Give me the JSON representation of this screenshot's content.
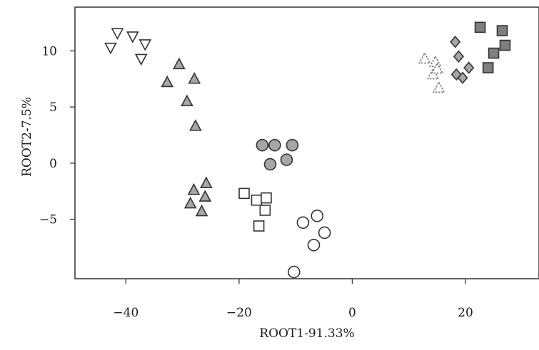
{
  "chart_data": {
    "type": "scatter",
    "title": "",
    "xlabel": "ROOT1-91.33%",
    "ylabel": "ROOT2-7.5%",
    "xlim": [
      -49,
      33
    ],
    "ylim": [
      -10.3,
      13.9
    ],
    "xticks": [
      -40,
      -20,
      0,
      20
    ],
    "yticks": [
      10,
      5,
      0,
      -5
    ],
    "xtick_labels": [
      "−40",
      "−20",
      "0",
      "20"
    ],
    "ytick_labels": [
      "10",
      "5",
      "0",
      "−5"
    ],
    "grid": false,
    "legend": "none",
    "series": [
      {
        "marker": "triangle-down",
        "fill": "#ffffff",
        "stroke": "#333333",
        "points": [
          [
            -42.7,
            10.3
          ],
          [
            -41.5,
            11.6
          ],
          [
            -38.8,
            11.3
          ],
          [
            -37.3,
            9.3
          ],
          [
            -36.6,
            10.6
          ]
        ]
      },
      {
        "marker": "triangle-up",
        "fill": "#a6a6a6",
        "stroke": "#333333",
        "points": [
          [
            -32.7,
            7.2
          ],
          [
            -30.6,
            8.8
          ],
          [
            -29.2,
            5.5
          ],
          [
            -27.9,
            7.5
          ],
          [
            -27.7,
            3.3
          ]
        ]
      },
      {
        "marker": "triangle-up",
        "fill": "#a6a6a6",
        "stroke": "#333333",
        "points": [
          [
            -28.6,
            -3.6
          ],
          [
            -28.0,
            -2.4
          ],
          [
            -26.6,
            -4.3
          ],
          [
            -26.0,
            -3.0
          ],
          [
            -25.8,
            -1.8
          ]
        ]
      },
      {
        "marker": "square",
        "fill": "#ffffff",
        "stroke": "#333333",
        "points": [
          [
            -19.1,
            -2.7
          ],
          [
            -16.9,
            -3.3
          ],
          [
            -16.5,
            -5.6
          ],
          [
            -15.4,
            -4.2
          ],
          [
            -15.2,
            -3.1
          ]
        ]
      },
      {
        "marker": "circle",
        "fill": "#a6a6a6",
        "stroke": "#333333",
        "points": [
          [
            -15.9,
            1.6
          ],
          [
            -14.5,
            -0.1
          ],
          [
            -13.7,
            1.6
          ],
          [
            -11.6,
            0.3
          ],
          [
            -10.6,
            1.6
          ]
        ]
      },
      {
        "marker": "circle",
        "fill": "#ffffff",
        "stroke": "#333333",
        "points": [
          [
            -10.3,
            -9.7
          ],
          [
            -8.7,
            -5.3
          ],
          [
            -6.8,
            -7.3
          ],
          [
            -6.2,
            -4.7
          ],
          [
            -4.9,
            -6.2
          ]
        ]
      },
      {
        "marker": "triangle-up",
        "fill": "#ffffff",
        "stroke": "#777777",
        "dashed": true,
        "points": [
          [
            12.8,
            9.3
          ],
          [
            14.3,
            7.9
          ],
          [
            14.7,
            9.0
          ],
          [
            15.0,
            8.4
          ],
          [
            15.3,
            6.7
          ]
        ]
      },
      {
        "marker": "diamond",
        "fill": "#a6a6a6",
        "stroke": "#333333",
        "points": [
          [
            18.2,
            10.8
          ],
          [
            18.4,
            7.9
          ],
          [
            18.8,
            9.5
          ],
          [
            19.5,
            7.6
          ],
          [
            20.6,
            8.5
          ]
        ]
      },
      {
        "marker": "square",
        "fill": "#7f7f7f",
        "stroke": "#333333",
        "points": [
          [
            22.6,
            12.1
          ],
          [
            24.0,
            8.5
          ],
          [
            25.0,
            9.8
          ],
          [
            26.5,
            11.8
          ],
          [
            27.0,
            10.5
          ]
        ]
      }
    ]
  }
}
